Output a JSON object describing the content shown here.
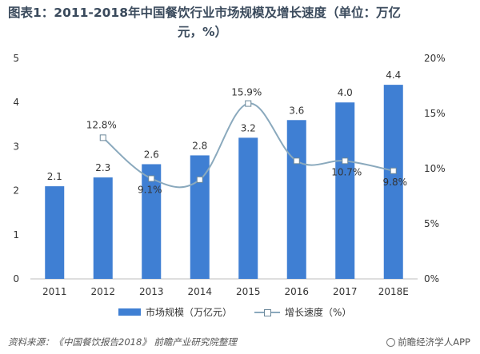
{
  "title": {
    "line1": "图表1：2011-2018年中国餐饮行业市场规模及增长速度（单位：万亿",
    "line2": "元，%）"
  },
  "legend": {
    "bar_label": "市场规模（万亿元）",
    "line_label": "增长速度（%）"
  },
  "footer": {
    "source": "资料来源：《中国餐饮报告2018》 前瞻产业研究院整理",
    "brand": "前瞻经济学人APP"
  },
  "colors": {
    "bar": "#3f7fd3",
    "line": "#8aa9bd",
    "marker_stroke": "#6b8799",
    "axis_text": "#333333"
  },
  "chart_data": {
    "type": "bar",
    "categories": [
      "2011",
      "2012",
      "2013",
      "2014",
      "2015",
      "2016",
      "2017",
      "2018E"
    ],
    "series": [
      {
        "name": "市场规模（万亿元）",
        "type": "bar",
        "axis": "left",
        "values": [
          2.1,
          2.3,
          2.6,
          2.8,
          3.2,
          3.6,
          4.0,
          4.4
        ],
        "labels": [
          "2.1",
          "2.3",
          "2.6",
          "2.8",
          "3.2",
          "3.6",
          "4.0",
          "4.4"
        ]
      },
      {
        "name": "增长速度（%）",
        "type": "line",
        "axis": "right",
        "values": [
          null,
          12.8,
          9.1,
          9.0,
          15.9,
          10.7,
          10.7,
          9.8
        ],
        "labels": [
          "",
          "12.8%",
          "9.1%",
          "",
          "15.9%",
          "",
          "10.7%",
          "9.8%"
        ]
      }
    ],
    "y_left": {
      "min": 0,
      "max": 5,
      "ticks": [
        "0",
        "1",
        "2",
        "3",
        "4",
        "5"
      ]
    },
    "y_right": {
      "min": 0,
      "max": 20,
      "ticks": [
        "0%",
        "5%",
        "10%",
        "15%",
        "20%"
      ]
    },
    "grid": false,
    "legend_position": "bottom"
  }
}
